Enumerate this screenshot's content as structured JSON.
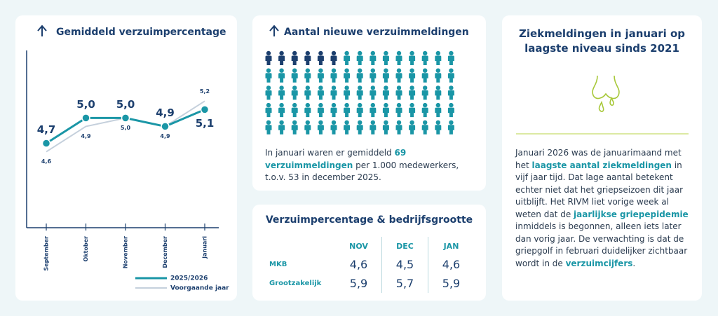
{
  "chart_data": {
    "type": "line",
    "title": "Gemiddeld verzuimpercentage",
    "categories": [
      "September",
      "Oktober",
      "November",
      "December",
      "Januari"
    ],
    "series": [
      {
        "name": "2025/2026",
        "color": "#1a96a6",
        "values": [
          4.7,
          5.0,
          5.0,
          4.9,
          5.1
        ],
        "value_labels": [
          "4,7",
          "5,0",
          "5,0",
          "4,9",
          "5,1"
        ]
      },
      {
        "name": "Voorgaande jaar",
        "color": "#c5d0dc",
        "values": [
          4.6,
          4.9,
          5.0,
          4.9,
          5.2
        ],
        "value_labels": [
          "4,6",
          "4,9",
          "5,0",
          "4,9",
          "5,2"
        ]
      }
    ],
    "ylim": [
      3.7,
      5.8
    ]
  },
  "meldingen": {
    "title": "Aantal nieuwe verzuimmeldingen",
    "text": [
      {
        "text": "In januari waren er gemiddeld "
      },
      {
        "text": "69 verzuimmeldingen",
        "emphasis": true
      },
      {
        "text": " per 1.000 medewerkers, t.o.v. 53 in december 2025."
      }
    ]
  },
  "table": {
    "title": "Verzuimpercentage & bedrijfsgrootte",
    "columns": [
      "NOV",
      "DEC",
      "JAN"
    ],
    "rows": [
      [
        "MKB",
        "4,6",
        "4,5",
        "4,6"
      ],
      [
        "Grootzakelijk",
        "5,9",
        "5,7",
        "5,9"
      ]
    ]
  },
  "article": {
    "title": "Ziekmeldingen in januari op laagste niveau sinds 2021",
    "text": [
      {
        "text": "Januari 2026 was de januarimaand met het "
      },
      {
        "text": "laagste aantal ziekmeldingen",
        "emphasis": true
      },
      {
        "text": " in vijf jaar tijd. Dat lage aantal betekent echter niet dat het griepseizoen dit jaar uitblijft. Het RIVM liet vorige week al weten dat de "
      },
      {
        "text": "jaarlijkse griepepidemie",
        "emphasis": true
      },
      {
        "text": " inmiddels is begonnen, alleen iets later dan vorig jaar. De verwachting is dat de griepgolf in februari duidelijker zichtbaar wordt in de "
      },
      {
        "text": "verzuimcijfers",
        "emphasis": true
      },
      {
        "text": "."
      }
    ]
  }
}
